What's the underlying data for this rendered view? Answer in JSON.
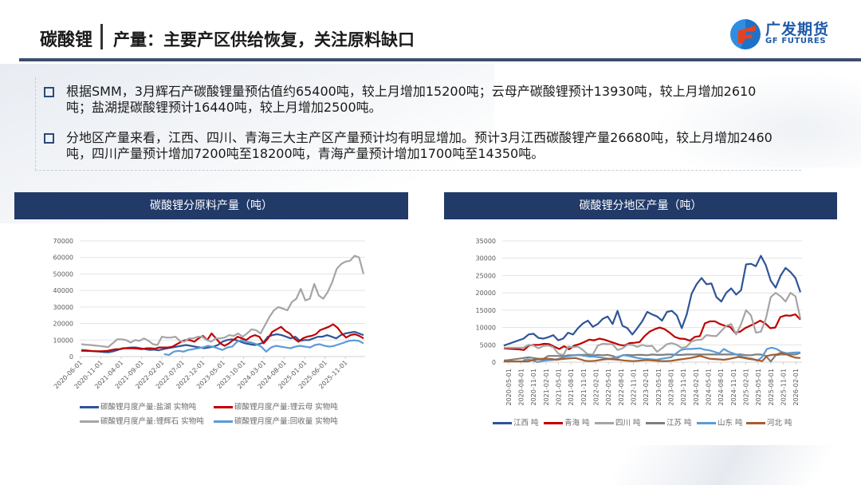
{
  "header": {
    "title_main": "碳酸锂",
    "title_sub": "产量：主要产区供给恢复，关注原料缺口",
    "logo_cn": "广发期货",
    "logo_en": "GF FUTURES"
  },
  "bullets": [
    {
      "text": "根据SMM，3月辉石产碳酸锂量预估值约65400吨，较上月增加15200吨；云母产碳酸锂预计13930吨，较上月增加2610吨；盐湖提碳酸锂预计16440吨，较上月增加2500吨。"
    },
    {
      "text": "分地区产量来看，江西、四川、青海三大主产区产量预计均有明显增加。预计3月江西碳酸锂产量26680吨，较上月增加2460吨，四川产量预计增加7200吨至18200吨，青海产量预计增加1700吨至14350吨。"
    }
  ],
  "panels": {
    "left_title": "碳酸锂分原料产量（吨）",
    "right_title": "碳酸锂分地区产量（吨）"
  },
  "colors": {
    "navy": "#213a68",
    "blue_dark": "#2f5597",
    "red": "#c00000",
    "gray": "#a5a5a5",
    "gray_dark": "#7f7f7f",
    "blue_light": "#5b9bd5",
    "brown": "#a65e2e"
  },
  "chart_data": [
    {
      "type": "line",
      "title": "碳酸锂分原料产量（吨）",
      "xlabel": "",
      "ylabel": "",
      "ylim": [
        0,
        70000
      ],
      "yticks": [
        0,
        10000,
        20000,
        30000,
        40000,
        50000,
        60000,
        70000
      ],
      "xtick_labels": [
        "2020-06-01",
        "2020-11-01",
        "2021-04-01",
        "2021-09-01",
        "2022-02-01",
        "2022-07-01",
        "2022-12-01",
        "2023-05-01",
        "2023-10-01",
        "2024-03-01",
        "2024-08-01",
        "2025-01-01",
        "2025-06-01",
        "2025-11-01"
      ],
      "grid": true,
      "legend_position": "bottom",
      "x_note": "approx. 4 points per tick interval (bi-monthly-ish sampling), 2020-06 to 2026-02",
      "series": [
        {
          "name": "碳酸锂月度产量:盐湖 实物吨",
          "color": "#2f5597",
          "values": [
            4000,
            3800,
            3500,
            3200,
            3000,
            2700,
            2600,
            3200,
            4000,
            5000,
            5200,
            5500,
            5500,
            5000,
            4500,
            4000,
            4200,
            3800,
            4500,
            5000,
            5500,
            6000,
            6500,
            7000,
            6500,
            6000,
            5500,
            5000,
            5500,
            6000,
            7000,
            9000,
            10000,
            10500,
            10000,
            9000,
            8000,
            7500,
            7000,
            7500,
            8500,
            12000,
            13000,
            13500,
            13000,
            12000,
            11000,
            12000,
            9500,
            10000,
            10000,
            11000,
            12000,
            12000,
            13000,
            12000,
            11000,
            13000,
            14000,
            14500,
            15000,
            14000,
            13000
          ]
        },
        {
          "name": "碳酸锂月度产量:锂云母 实物吨",
          "color": "#c00000",
          "values": [
            3500,
            3500,
            3400,
            3300,
            3200,
            3300,
            3500,
            4000,
            4500,
            4500,
            5000,
            5000,
            5000,
            4800,
            4500,
            5000,
            5000,
            4800,
            5500,
            5500,
            5500,
            6000,
            7500,
            9000,
            10000,
            10000,
            9000,
            11000,
            12500,
            10000,
            14000,
            11000,
            8000,
            6500,
            8000,
            10000,
            12000,
            11000,
            10000,
            12000,
            13000,
            12000,
            8000,
            11000,
            15000,
            16500,
            18000,
            15500,
            14000,
            11000,
            9000,
            11000,
            12000,
            12500,
            13500,
            16000,
            17000,
            18000,
            19500,
            17500,
            14000,
            11500,
            13000,
            13500,
            12500,
            11000
          ]
        },
        {
          "name": "碳酸锂月度产量:锂辉石 实物吨",
          "color": "#a5a5a5",
          "values": [
            7500,
            7200,
            7000,
            6700,
            6400,
            6100,
            5800,
            8000,
            10500,
            10500,
            10000,
            8500,
            10000,
            9500,
            11000,
            9500,
            7500,
            7000,
            12000,
            11500,
            11500,
            12000,
            9500,
            9000,
            11000,
            11000,
            12000,
            12000,
            10000,
            9000,
            11000,
            11000,
            11500,
            13000,
            12500,
            14000,
            12000,
            14000,
            16500,
            16000,
            14000,
            19000,
            24000,
            28000,
            30000,
            29000,
            28000,
            33000,
            35000,
            41000,
            34000,
            35000,
            44000,
            37000,
            35000,
            39000,
            45000,
            53000,
            56000,
            57500,
            58000,
            61000,
            60000,
            50000
          ]
        },
        {
          "name": "碳酸锂月度产量:回收量 实物吨",
          "color": "#5b9bd5",
          "values": [
            null,
            null,
            null,
            null,
            null,
            null,
            null,
            null,
            null,
            null,
            null,
            null,
            null,
            null,
            null,
            null,
            null,
            1500,
            1000,
            3000,
            3500,
            3000,
            4000,
            4500,
            5000,
            5500,
            6500,
            6000,
            5000,
            4000,
            5500,
            6000,
            9000,
            10000,
            9000,
            8500,
            7500,
            6000,
            3000,
            5500,
            6500,
            6000,
            5500,
            5000,
            6000,
            6500,
            6000,
            5500,
            7000,
            7500,
            6500,
            6000,
            6500,
            7500,
            8500,
            9500,
            9800,
            9500,
            8000
          ]
        }
      ]
    },
    {
      "type": "line",
      "title": "碳酸锂分地区产量（吨）",
      "xlabel": "",
      "ylabel": "",
      "ylim": [
        0,
        35000
      ],
      "yticks": [
        0,
        5000,
        10000,
        15000,
        20000,
        25000,
        30000,
        35000
      ],
      "xtick_labels": [
        "2020-05-01",
        "2020-08-01",
        "2020-11-01",
        "2021-02-01",
        "2021-05-01",
        "2021-08-01",
        "2021-11-01",
        "2022-02-01",
        "2022-05-01",
        "2022-08-01",
        "2022-11-01",
        "2023-02-01",
        "2023-05-01",
        "2023-08-01",
        "2023-11-01",
        "2024-02-01",
        "2024-05-01",
        "2024-08-01",
        "2024-11-01",
        "2025-02-01",
        "2025-05-01",
        "2025-08-01",
        "2025-11-01",
        "2026-02-01"
      ],
      "grid": true,
      "legend_position": "bottom",
      "series": [
        {
          "name": "江西 吨",
          "color": "#2f5597",
          "values": [
            4800,
            5300,
            5800,
            6300,
            6800,
            8000,
            8200,
            7000,
            6800,
            7200,
            7800,
            6300,
            6800,
            8500,
            8000,
            9800,
            11200,
            12000,
            10200,
            11000,
            12500,
            13200,
            11000,
            14800,
            10500,
            9800,
            8000,
            9800,
            11800,
            14500,
            13800,
            13200,
            12000,
            14500,
            14800,
            13500,
            9800,
            13800,
            19800,
            22500,
            24300,
            22500,
            22700,
            18800,
            17500,
            20000,
            21300,
            19500,
            20800,
            28200,
            28400,
            27700,
            30700,
            28000,
            23500,
            21500,
            25000,
            27200,
            26000,
            24300,
            20200
          ]
        },
        {
          "name": "青海 吨",
          "color": "#c00000",
          "values": [
            4000,
            3900,
            3800,
            3700,
            3500,
            4800,
            5000,
            5000,
            5300,
            5200,
            4500,
            3800,
            4600,
            3700,
            4800,
            5200,
            5800,
            6500,
            6300,
            6800,
            6500,
            6000,
            5500,
            5000,
            4800,
            5500,
            5600,
            5800,
            7500,
            8800,
            9500,
            10000,
            9500,
            8500,
            7300,
            6800,
            6700,
            6200,
            7300,
            7500,
            11200,
            11800,
            11800,
            11000,
            10500,
            10200,
            8500,
            8800,
            9800,
            10500,
            11200,
            12000,
            11200,
            9800,
            10000,
            13000,
            13500,
            13400,
            13800,
            12300
          ]
        },
        {
          "name": "四川 吨",
          "color": "#a5a5a5",
          "values": [
            4200,
            4200,
            4200,
            4200,
            4200,
            5000,
            4800,
            4000,
            4700,
            4800,
            4300,
            2500,
            2000,
            4500,
            4300,
            4500,
            3500,
            2200,
            2200,
            4800,
            5300,
            5200,
            5200,
            3500,
            4000,
            5000,
            5000,
            4400,
            5000,
            4600,
            4700,
            3000,
            4000,
            5200,
            5500,
            5000,
            4100,
            4500,
            6000,
            6400,
            6500,
            7800,
            7600,
            7500,
            9000,
            10500,
            11000,
            8000,
            11000,
            15000,
            13500,
            8500,
            8800,
            12500,
            18800,
            20000,
            19000,
            17500,
            20000,
            19000,
            12500
          ]
        },
        {
          "name": "江苏 吨",
          "color": "#7f7f7f",
          "values": [
            500,
            600,
            800,
            1000,
            1200,
            1400,
            1200,
            1000,
            1000,
            1800,
            1800,
            1800,
            1700,
            2000,
            2000,
            2100,
            2100,
            2100,
            1900,
            2100,
            2000,
            2100,
            1800,
            1200,
            2000,
            2100,
            2000,
            2100,
            2100,
            2000,
            2200,
            2100,
            2100,
            2200,
            2200,
            2100,
            2100,
            2200,
            2200,
            2200,
            2200,
            2200,
            2200,
            2200,
            2200,
            2200,
            2200,
            2200,
            2200,
            2000,
            2000,
            2200,
            2200,
            1800,
            200,
            2000,
            2200,
            2200,
            2200,
            2200,
            2700
          ]
        },
        {
          "name": "山东 吨",
          "color": "#5b9bd5",
          "values": [
            null,
            null,
            null,
            null,
            500,
            800,
            500,
            0,
            300,
            500,
            600,
            800,
            1200,
            1600,
            1800,
            2000,
            2000,
            1800,
            1600,
            1600,
            1400,
            1200,
            1000,
            1200,
            1600,
            2000,
            1800,
            1500,
            1200,
            1000,
            900,
            800,
            700,
            1000,
            1200,
            1400,
            2500,
            3500,
            3800,
            3800,
            3900,
            4000,
            3600,
            3400,
            3000,
            2500,
            3800,
            3000,
            2500,
            2000,
            1500,
            1200,
            1000,
            400,
            1500,
            3800,
            4200,
            3800,
            3000,
            2600,
            2700,
            2800,
            2800
          ]
        },
        {
          "name": "河北 吨",
          "color": "#a65e2e",
          "values": [
            200,
            200,
            200,
            200,
            200,
            200,
            600,
            800,
            800,
            1000,
            900,
            700,
            900,
            1000,
            1100,
            1200,
            800,
            400,
            300,
            400,
            600,
            800,
            900,
            800,
            700,
            500,
            400,
            300,
            400,
            500,
            600,
            500,
            400,
            300,
            300,
            400,
            600,
            800,
            1000,
            1200,
            1500,
            1800,
            1400,
            1000,
            900,
            800,
            700,
            900,
            1200,
            1500,
            1300,
            1000,
            800,
            600,
            300,
            1800,
            2100,
            2200,
            2700,
            2300,
            1700,
            1300,
            1200
          ]
        }
      ]
    }
  ]
}
